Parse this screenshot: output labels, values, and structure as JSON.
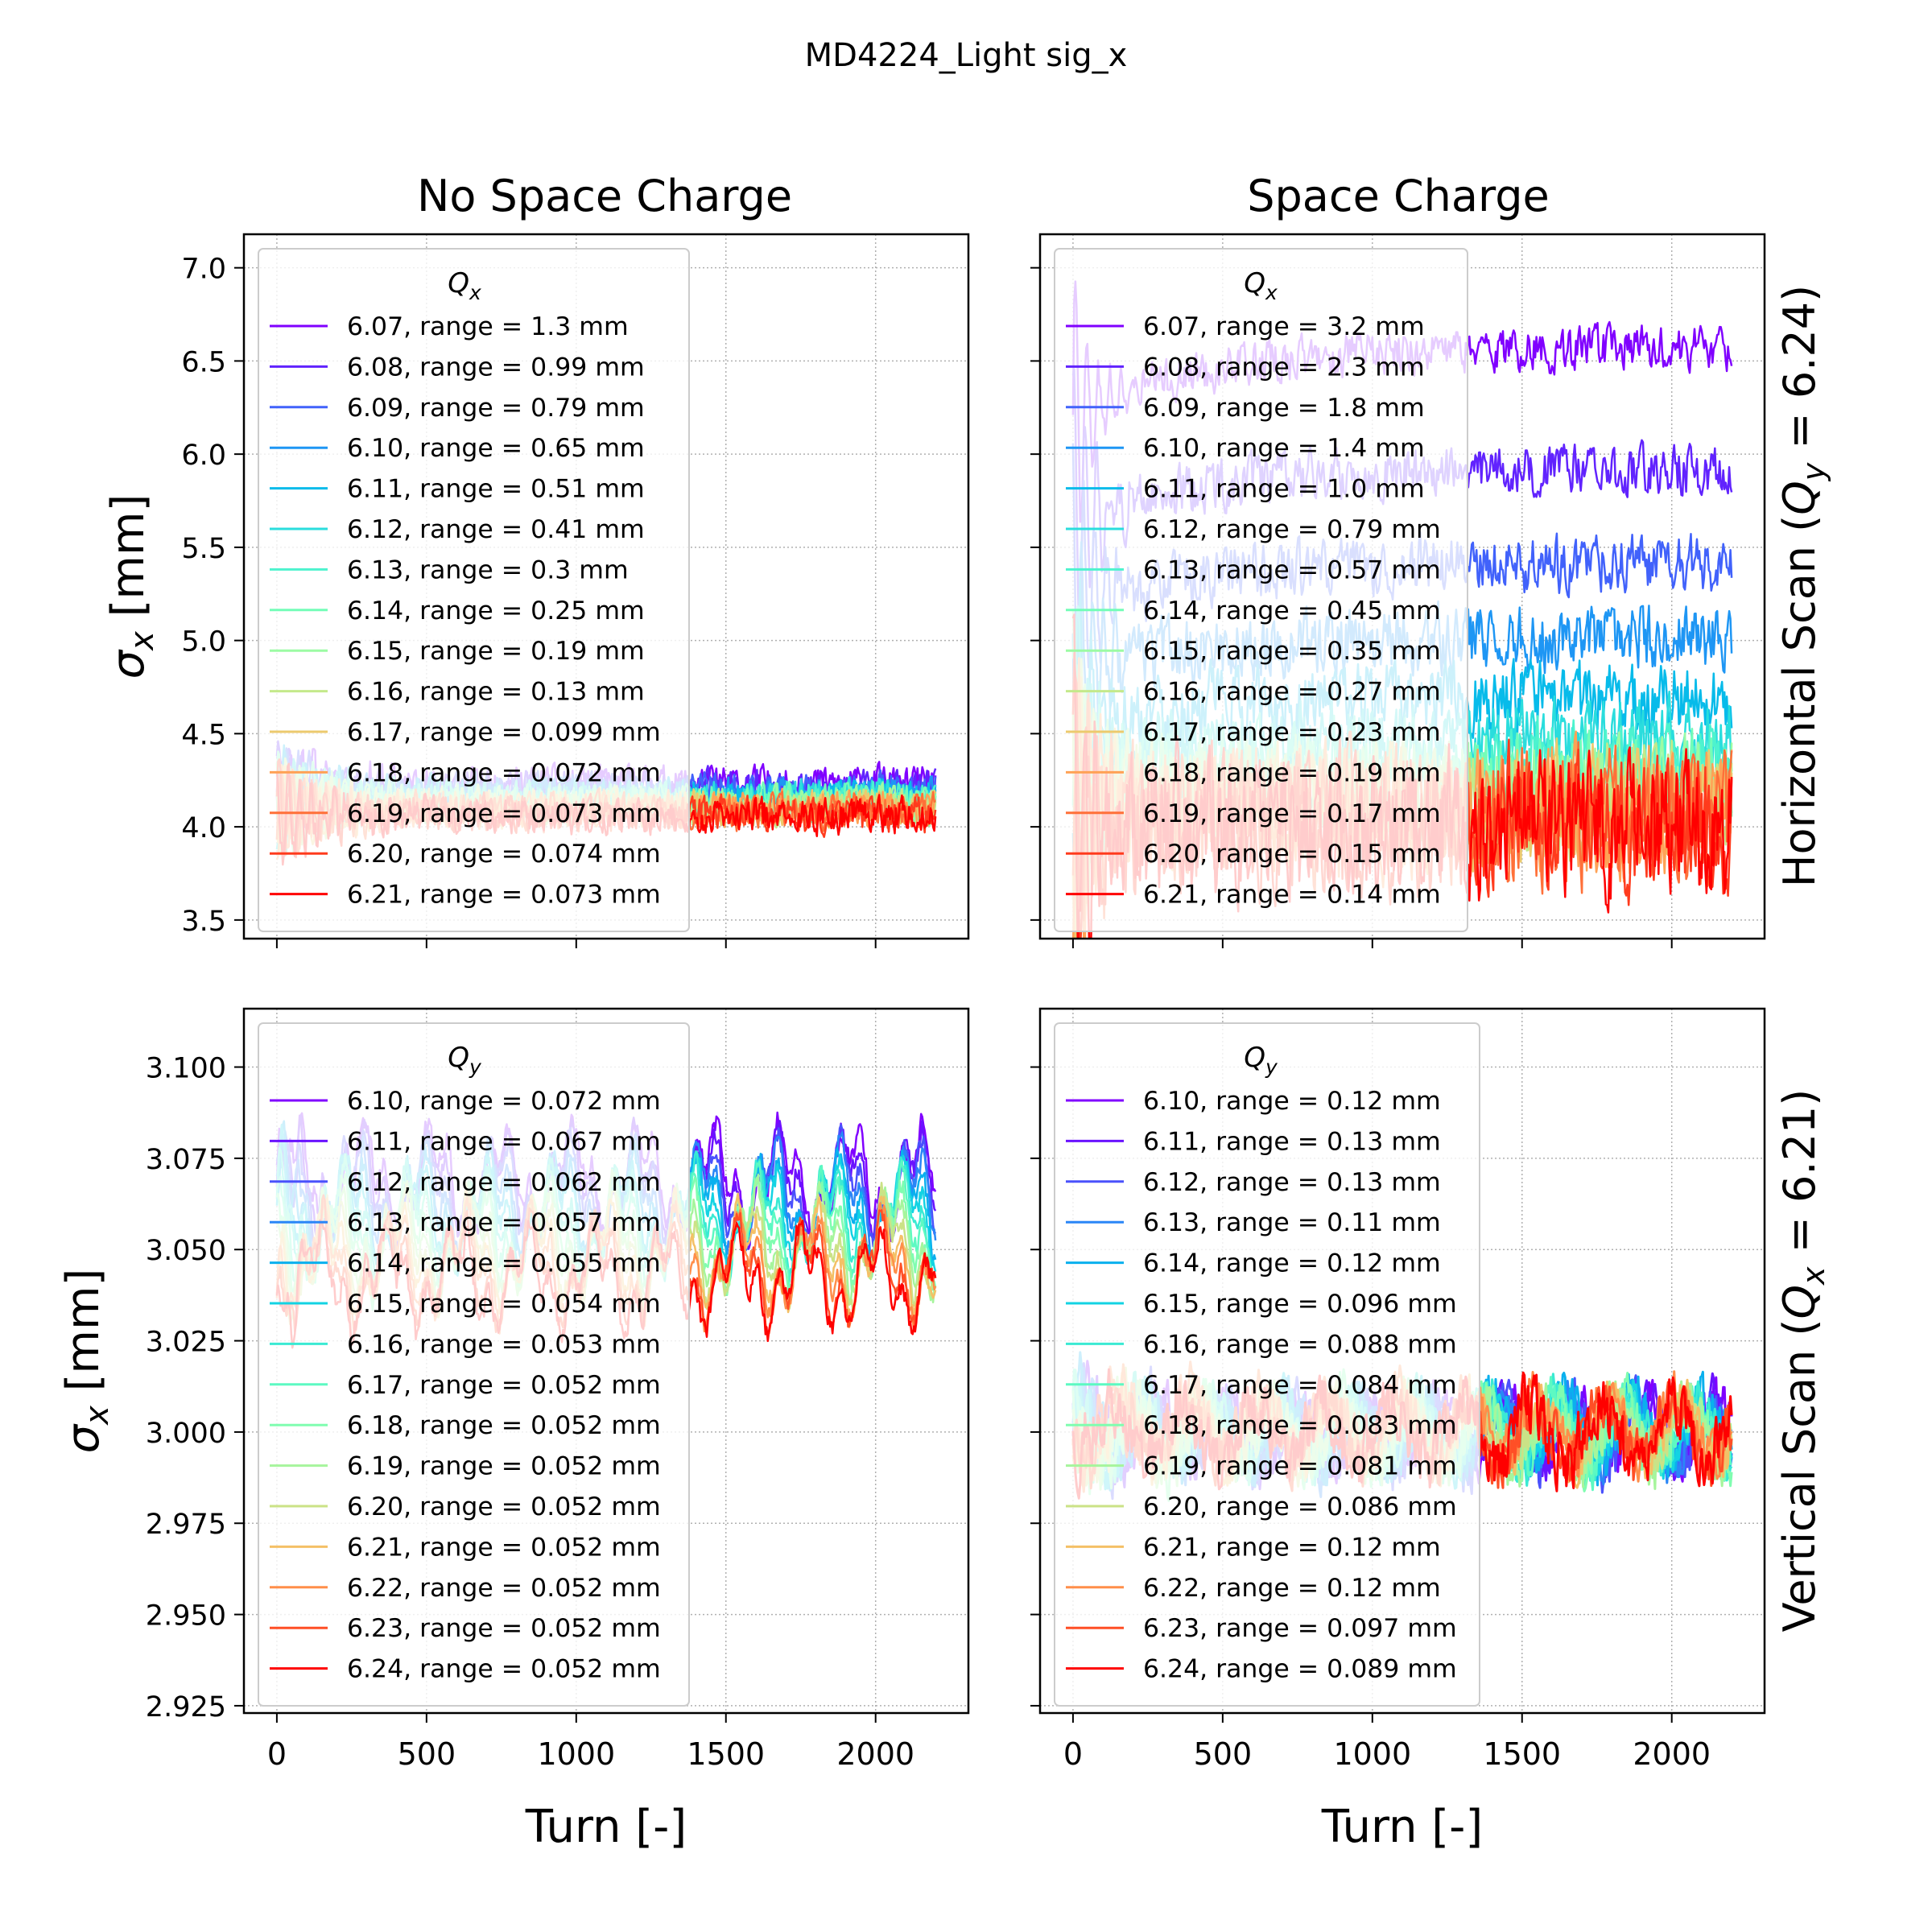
{
  "figure": {
    "suptitle": "MD4224_Light sig_x",
    "col_titles": [
      "No Space Charge",
      "Space Charge"
    ],
    "row_labels": [
      "Horizontal Scan ($Q_y$ = 6.24)",
      "Vertical Scan ($Q_x$ = 6.21)"
    ],
    "row_label_parts": [
      {
        "pre": "Horizontal Scan (",
        "sym": "Q",
        "sub": "y",
        "post": " = 6.24)"
      },
      {
        "pre": "Vertical Scan (",
        "sym": "Q",
        "sub": "x",
        "post": " = 6.21)"
      }
    ],
    "xlabel": "Turn [-]",
    "ylabel": "σx [mm]",
    "ylabel_parts": {
      "sym": "σ",
      "sub": "x",
      "post": " [mm]"
    }
  },
  "chart_data": [
    {
      "type": "line",
      "panel": "top-left",
      "title": "No Space Charge",
      "xlabel": "",
      "ylabel": "σx [mm]",
      "xlim": [
        -110,
        2310
      ],
      "ylim": [
        3.4,
        7.18
      ],
      "xticks": [
        0,
        500,
        1000,
        1500,
        2000
      ],
      "show_xticklabels": false,
      "yticks": [
        3.5,
        4.0,
        4.5,
        5.0,
        5.5,
        6.0,
        6.5,
        7.0
      ],
      "ytick_labels": [
        "3.5",
        "4.0",
        "4.5",
        "5.0",
        "5.5",
        "6.0",
        "6.5",
        "7.0"
      ],
      "grid": true,
      "legend": {
        "title": "Qx",
        "title_sym": "Q",
        "title_sub": "x",
        "location": "upper-left"
      },
      "series": [
        {
          "name": "6.07, range = 1.3 mm",
          "color": "#8000ff",
          "level": 4.23
        },
        {
          "name": "6.08, range = 0.99 mm",
          "color": "#6123fe",
          "level": 4.21
        },
        {
          "name": "6.09, range = 0.79 mm",
          "color": "#4162fb",
          "level": 4.19
        },
        {
          "name": "6.10, range = 0.65 mm",
          "color": "#1e96f4",
          "level": 4.17
        },
        {
          "name": "6.11, range = 0.51 mm",
          "color": "#07bbea",
          "level": 4.16
        },
        {
          "name": "6.12, range = 0.41 mm",
          "color": "#2adddd",
          "level": 4.15
        },
        {
          "name": "6.13, range = 0.3 mm",
          "color": "#4df3ce",
          "level": 4.14
        },
        {
          "name": "6.14, range = 0.25 mm",
          "color": "#73fdb8",
          "level": 4.13
        },
        {
          "name": "6.15, range = 0.19 mm",
          "color": "#9cfba4",
          "level": 4.12
        },
        {
          "name": "6.16, range = 0.13 mm",
          "color": "#c4e98b",
          "level": 4.11
        },
        {
          "name": "6.17, range = 0.099 mm",
          "color": "#ecca6e",
          "level": 4.1
        },
        {
          "name": "6.18, range = 0.072 mm",
          "color": "#ffa256",
          "level": 4.09
        },
        {
          "name": "6.19, range = 0.073 mm",
          "color": "#ff7039",
          "level": 4.08
        },
        {
          "name": "6.20, range = 0.074 mm",
          "color": "#ff3b1d",
          "level": 4.07
        },
        {
          "name": "6.21, range = 0.073 mm",
          "color": "#ff0000",
          "level": 4.06
        }
      ]
    },
    {
      "type": "line",
      "panel": "top-right",
      "title": "Space Charge",
      "xlabel": "",
      "ylabel": "",
      "xlim": [
        -110,
        2310
      ],
      "ylim": [
        3.4,
        7.18
      ],
      "xticks": [
        0,
        500,
        1000,
        1500,
        2000
      ],
      "show_xticklabels": false,
      "yticks": [
        3.5,
        4.0,
        4.5,
        5.0,
        5.5,
        6.0,
        6.5,
        7.0
      ],
      "show_yticklabels": false,
      "grid": true,
      "legend": {
        "title": "Qx",
        "title_sym": "Q",
        "title_sub": "x",
        "location": "upper-left"
      },
      "series": [
        {
          "name": "6.07, range = 3.2 mm",
          "color": "#8000ff",
          "level": 6.57
        },
        {
          "name": "6.08, range = 2.3 mm",
          "color": "#6123fe",
          "level": 5.92
        },
        {
          "name": "6.09, range = 1.8 mm",
          "color": "#4162fb",
          "level": 5.41
        },
        {
          "name": "6.10, range = 1.4 mm",
          "color": "#1e96f4",
          "level": 5.01
        },
        {
          "name": "6.11, range = 1.0 mm",
          "color": "#07bbea",
          "level": 4.69
        },
        {
          "name": "6.12, range = 0.79 mm",
          "color": "#2adddd",
          "level": 4.47
        },
        {
          "name": "6.13, range = 0.57 mm",
          "color": "#4df3ce",
          "level": 4.33
        },
        {
          "name": "6.14, range = 0.45 mm",
          "color": "#73fdb8",
          "level": 4.25
        },
        {
          "name": "6.15, range = 0.35 mm",
          "color": "#9cfba4",
          "level": 4.19
        },
        {
          "name": "6.16, range = 0.27 mm",
          "color": "#c4e98b",
          "level": 4.14
        },
        {
          "name": "6.17, range = 0.23 mm",
          "color": "#ecca6e",
          "level": 4.1
        },
        {
          "name": "6.18, range = 0.19 mm",
          "color": "#ffa256",
          "level": 4.07
        },
        {
          "name": "6.19, range = 0.17 mm",
          "color": "#ff7039",
          "level": 4.05
        },
        {
          "name": "6.20, range = 0.15 mm",
          "color": "#ff3b1d",
          "level": 4.03
        },
        {
          "name": "6.21, range = 0.14 mm",
          "color": "#ff0000",
          "level": 4.01
        }
      ]
    },
    {
      "type": "line",
      "panel": "bottom-left",
      "title": "",
      "xlabel": "Turn [-]",
      "ylabel": "σx [mm]",
      "xlim": [
        -110,
        2310
      ],
      "ylim": [
        2.923,
        3.116
      ],
      "xticks": [
        0,
        500,
        1000,
        1500,
        2000
      ],
      "xtick_labels": [
        "0",
        "500",
        "1000",
        "1500",
        "2000"
      ],
      "show_xticklabels": true,
      "yticks": [
        2.925,
        2.95,
        2.975,
        3.0,
        3.025,
        3.05,
        3.075,
        3.1
      ],
      "ytick_labels": [
        "2.925",
        "2.950",
        "2.975",
        "3.000",
        "3.025",
        "3.050",
        "3.075",
        "3.100"
      ],
      "grid": true,
      "legend": {
        "title": "Qy",
        "title_sym": "Q",
        "title_sub": "y",
        "location": "upper-left"
      },
      "series": [
        {
          "name": "6.10, range = 0.072 mm",
          "color": "#8000ff",
          "level": 3.07
        },
        {
          "name": "6.11, range = 0.067 mm",
          "color": "#6a12ff",
          "level": 3.068
        },
        {
          "name": "6.12, range = 0.062 mm",
          "color": "#4a51fc",
          "level": 3.066
        },
        {
          "name": "6.13, range = 0.057 mm",
          "color": "#2a86f7",
          "level": 3.064
        },
        {
          "name": "6.14, range = 0.055 mm",
          "color": "#0ab0ee",
          "level": 3.062
        },
        {
          "name": "6.15, range = 0.054 mm",
          "color": "#13d3e3",
          "level": 3.06
        },
        {
          "name": "6.16, range = 0.053 mm",
          "color": "#3aead3",
          "level": 3.058
        },
        {
          "name": "6.17, range = 0.052 mm",
          "color": "#5df9c2",
          "level": 3.056
        },
        {
          "name": "6.18, range = 0.052 mm",
          "color": "#80fdb0",
          "level": 3.054
        },
        {
          "name": "6.19, range = 0.052 mm",
          "color": "#a6f59c",
          "level": 3.052
        },
        {
          "name": "6.20, range = 0.052 mm",
          "color": "#cbe286",
          "level": 3.05
        },
        {
          "name": "6.21, range = 0.052 mm",
          "color": "#f4c066",
          "level": 3.048
        },
        {
          "name": "6.22, range = 0.052 mm",
          "color": "#ff8e4a",
          "level": 3.046
        },
        {
          "name": "6.23, range = 0.052 mm",
          "color": "#ff4f26",
          "level": 3.044
        },
        {
          "name": "6.24, range = 0.052 mm",
          "color": "#ff0000",
          "level": 3.042
        }
      ]
    },
    {
      "type": "line",
      "panel": "bottom-right",
      "title": "",
      "xlabel": "Turn [-]",
      "ylabel": "",
      "xlim": [
        -110,
        2310
      ],
      "ylim": [
        2.923,
        3.116
      ],
      "xticks": [
        0,
        500,
        1000,
        1500,
        2000
      ],
      "xtick_labels": [
        "0",
        "500",
        "1000",
        "1500",
        "2000"
      ],
      "show_xticklabels": true,
      "yticks": [
        2.925,
        2.95,
        2.975,
        3.0,
        3.025,
        3.05,
        3.075,
        3.1
      ],
      "show_yticklabels": false,
      "grid": true,
      "legend": {
        "title": "Qy",
        "title_sym": "Q",
        "title_sub": "y",
        "location": "upper-left"
      },
      "series": [
        {
          "name": "6.10, range = 0.12 mm",
          "color": "#8000ff",
          "level": 3.0
        },
        {
          "name": "6.11, range = 0.13 mm",
          "color": "#6a12ff",
          "level": 3.0
        },
        {
          "name": "6.12, range = 0.13 mm",
          "color": "#4a51fc",
          "level": 2.999
        },
        {
          "name": "6.13, range = 0.11 mm",
          "color": "#2a86f7",
          "level": 3.0
        },
        {
          "name": "6.14, range = 0.12 mm",
          "color": "#0ab0ee",
          "level": 3.0
        },
        {
          "name": "6.15, range = 0.096 mm",
          "color": "#13d3e3",
          "level": 3.0
        },
        {
          "name": "6.16, range = 0.088 mm",
          "color": "#3aead3",
          "level": 3.0
        },
        {
          "name": "6.17, range = 0.084 mm",
          "color": "#5df9c2",
          "level": 3.0
        },
        {
          "name": "6.18, range = 0.083 mm",
          "color": "#80fdb0",
          "level": 3.0
        },
        {
          "name": "6.19, range = 0.081 mm",
          "color": "#a6f59c",
          "level": 3.0
        },
        {
          "name": "6.20, range = 0.086 mm",
          "color": "#cbe286",
          "level": 3.0
        },
        {
          "name": "6.21, range = 0.12 mm",
          "color": "#f4c066",
          "level": 3.0
        },
        {
          "name": "6.22, range = 0.12 mm",
          "color": "#ff8e4a",
          "level": 3.002
        },
        {
          "name": "6.23, range = 0.097 mm",
          "color": "#ff4f26",
          "level": 3.0
        },
        {
          "name": "6.24, range = 0.089 mm",
          "color": "#ff0000",
          "level": 3.0
        }
      ]
    }
  ]
}
